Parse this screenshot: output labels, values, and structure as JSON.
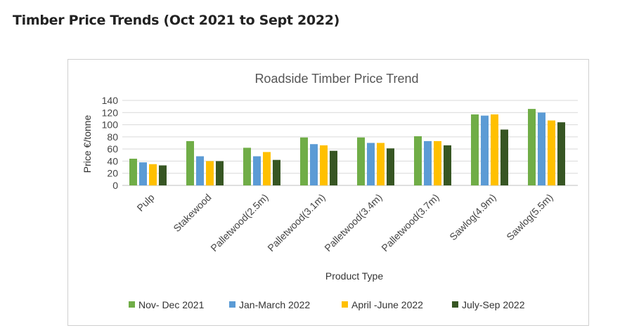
{
  "page": {
    "heading": "Timber Price Trends (Oct 2021 to Sept 2022)"
  },
  "chart_data": {
    "type": "bar",
    "title": "Roadside Timber Price Trend",
    "xlabel": "Product Type",
    "ylabel": "Price €/tonne",
    "ylim": [
      0,
      140
    ],
    "yticks": [
      0,
      20,
      40,
      60,
      80,
      100,
      120,
      140
    ],
    "grid": true,
    "legend_position": "bottom",
    "categories": [
      "Pulp",
      "Stakewood",
      "Palletwood(2.5m)",
      "Palletwood(3.1m)",
      "Palletwood(3.4m)",
      "Palletwood(3.7m)",
      "Sawlog(4.9m)",
      "Sawlog(5.5m)"
    ],
    "series": [
      {
        "name": "Nov- Dec 2021",
        "color": "#70ad47",
        "values": [
          44,
          73,
          62,
          79,
          79,
          81,
          117,
          126
        ]
      },
      {
        "name": "Jan-March 2022",
        "color": "#5b9bd5",
        "values": [
          38,
          48,
          48,
          68,
          70,
          73,
          115,
          120
        ]
      },
      {
        "name": "April -June 2022",
        "color": "#ffc000",
        "values": [
          35,
          40,
          55,
          66,
          70,
          73,
          117,
          107
        ]
      },
      {
        "name": "July-Sep 2022",
        "color": "#375623",
        "values": [
          33,
          40,
          42,
          57,
          61,
          66,
          92,
          104
        ]
      }
    ]
  }
}
